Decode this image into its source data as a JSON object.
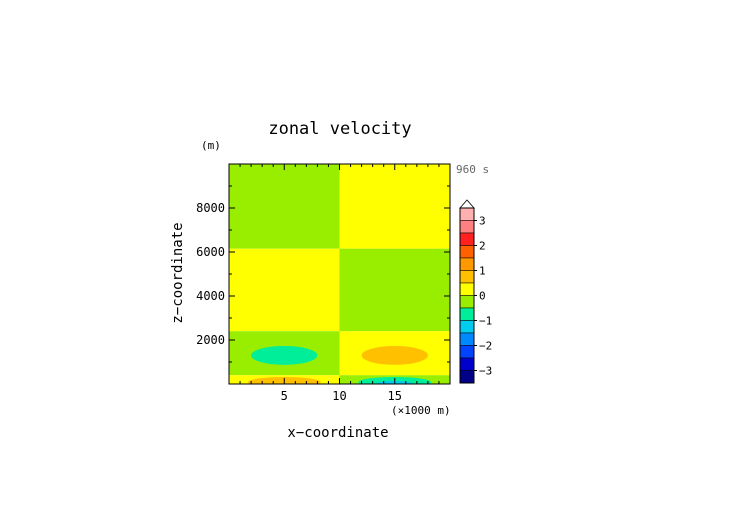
{
  "chart_data": {
    "type": "heatmap",
    "title": "zonal velocity",
    "xlabel": "x−coordinate",
    "ylabel": "z−coordinate",
    "x_unit": "(×1000 m)",
    "y_unit": "(m)",
    "time_label": "960 s",
    "xlim": [
      0,
      20
    ],
    "ylim": [
      0,
      10000
    ],
    "x_ticks": [
      5,
      10,
      15
    ],
    "y_ticks": [
      2000,
      4000,
      6000,
      8000
    ],
    "x_tick_labels": [
      "5",
      "10",
      "15"
    ],
    "y_tick_labels": [
      "2000",
      "4000",
      "6000",
      "8000"
    ],
    "colorbar": {
      "tick_labels": [
        "3",
        "2",
        "1",
        "0",
        "−1",
        "−2",
        "−3"
      ],
      "tick_values": [
        3,
        2,
        1,
        0,
        -1,
        -2,
        -3
      ],
      "levels": [
        {
          "min": 3.0,
          "max": 3.5,
          "color": "#ffb0b0"
        },
        {
          "min": 2.5,
          "max": 3.0,
          "color": "#ff8080"
        },
        {
          "min": 2.0,
          "max": 2.5,
          "color": "#ff2020"
        },
        {
          "min": 1.5,
          "max": 2.0,
          "color": "#ff6000"
        },
        {
          "min": 1.0,
          "max": 1.5,
          "color": "#ff9900"
        },
        {
          "min": 0.5,
          "max": 1.0,
          "color": "#ffc000"
        },
        {
          "min": 0.0,
          "max": 0.5,
          "color": "#ffff00"
        },
        {
          "min": -0.5,
          "max": 0.0,
          "color": "#99ee00"
        },
        {
          "min": -1.0,
          "max": -0.5,
          "color": "#00ee99"
        },
        {
          "min": -1.5,
          "max": -1.0,
          "color": "#00ccee"
        },
        {
          "min": -2.0,
          "max": -1.5,
          "color": "#0088ff"
        },
        {
          "min": -2.5,
          "max": -2.0,
          "color": "#0044ff"
        },
        {
          "min": -3.0,
          "max": -2.5,
          "color": "#0000cc"
        },
        {
          "min": -3.5,
          "max": -3.0,
          "color": "#000088"
        }
      ]
    },
    "regions": [
      {
        "x": [
          0,
          10
        ],
        "y": [
          6150,
          10000
        ],
        "value": -0.25
      },
      {
        "x": [
          10,
          20
        ],
        "y": [
          6150,
          10000
        ],
        "value": 0.25
      },
      {
        "x": [
          0,
          10
        ],
        "y": [
          2400,
          6150
        ],
        "value": 0.25
      },
      {
        "x": [
          10,
          20
        ],
        "y": [
          2400,
          6150
        ],
        "value": -0.25
      },
      {
        "x": [
          0,
          10
        ],
        "y": [
          400,
          2400
        ],
        "value": -0.25
      },
      {
        "x": [
          10,
          20
        ],
        "y": [
          400,
          2400
        ],
        "value": 0.25
      },
      {
        "x": [
          0,
          10
        ],
        "y": [
          0,
          400
        ],
        "value": 0.25
      },
      {
        "x": [
          10,
          20
        ],
        "y": [
          0,
          400
        ],
        "value": -0.25
      }
    ],
    "cells": [
      {
        "cx": 5,
        "cy": 1300,
        "rx": 3,
        "ry": 430,
        "value": -0.75
      },
      {
        "cx": 15,
        "cy": 1300,
        "rx": 3,
        "ry": 430,
        "value": 0.75
      },
      {
        "cx": 5,
        "cy": 80,
        "rx": 3.3,
        "ry": 240,
        "value": 0.75
      },
      {
        "cx": 15,
        "cy": 80,
        "rx": 3.3,
        "ry": 240,
        "value": -0.75
      },
      {
        "cx": 15,
        "cy": 20,
        "rx": 1.6,
        "ry": 120,
        "value": -1.25
      }
    ]
  }
}
